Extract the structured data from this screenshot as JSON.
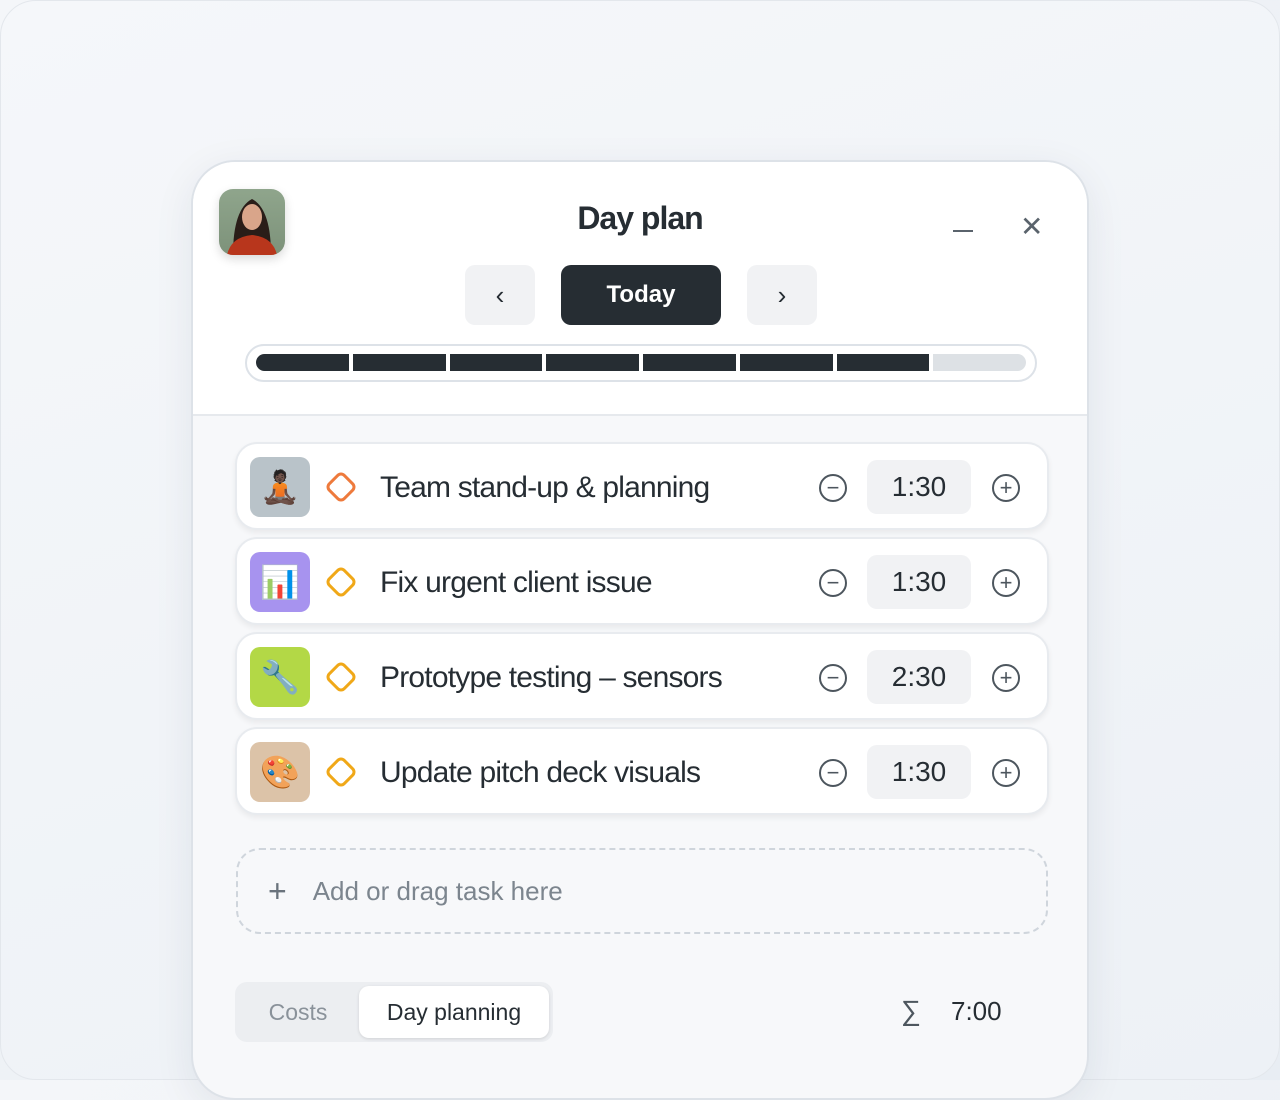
{
  "header": {
    "title": "Day plan",
    "today_label": "Today",
    "prev_icon": "chevron-left-icon",
    "next_icon": "chevron-right-icon",
    "minimize_icon": "minimize-icon",
    "close_icon": "close-icon"
  },
  "progress": {
    "segments_total": 8,
    "segments_filled": 7,
    "filled_fraction": 0.875,
    "fill_color": "#262d33",
    "empty_color": "#dde1e5"
  },
  "tasks": [
    {
      "icon": "meditation-emoji",
      "emoji": "🧘🏿",
      "icon_bg": "#b9c3c9",
      "status_icon": "diamond-clock-icon",
      "status_color": "#ee7a3c",
      "name": "Team stand-up & planning",
      "duration": "1:30"
    },
    {
      "icon": "bar-chart-emoji",
      "emoji": "📊",
      "icon_bg": "#a793ef",
      "status_icon": "diamond-icon",
      "status_color": "#f0a818",
      "name": "Fix urgent client issue",
      "duration": "1:30"
    },
    {
      "icon": "wrench-emoji",
      "emoji": "🔧",
      "icon_bg": "#b3d846",
      "status_icon": "diamond-icon",
      "status_color": "#f0a818",
      "name": "Prototype testing – sensors",
      "duration": "2:30"
    },
    {
      "icon": "palette-emoji",
      "emoji": "🎨",
      "icon_bg": "#dcc3a8",
      "status_icon": "diamond-icon",
      "status_color": "#f0a818",
      "name": "Update pitch deck visuals",
      "duration": "1:30"
    }
  ],
  "add_task": {
    "label": "Add or drag task here",
    "plus": "+"
  },
  "footer": {
    "tabs": [
      "Costs",
      "Day planning"
    ],
    "active_tab": "Day planning",
    "sum_symbol": "∑",
    "total": "7:00"
  },
  "controls": {
    "minus": "−",
    "plus": "+",
    "prev": "‹",
    "next": "›",
    "close": "✕"
  }
}
